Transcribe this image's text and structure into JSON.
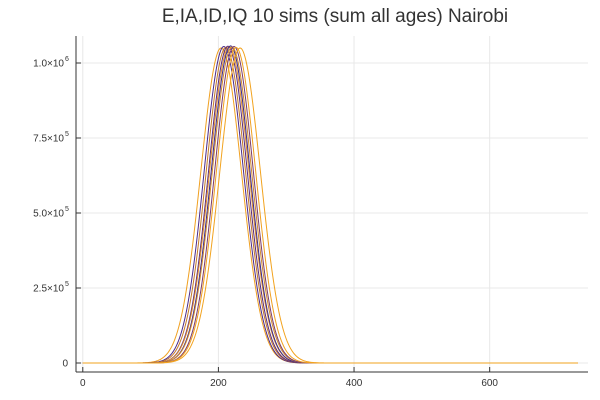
{
  "chart_data": {
    "type": "line",
    "title": "E,IA,ID,IQ 10 sims (sum all ages) Nairobi",
    "xlabel": "",
    "ylabel": "",
    "xlim": [
      -10,
      745
    ],
    "ylim": [
      -30000,
      1090000
    ],
    "grid": true,
    "legend": "none",
    "x_ticks": [
      {
        "value": 0,
        "label": "0"
      },
      {
        "value": 200,
        "label": "200"
      },
      {
        "value": 400,
        "label": "400"
      },
      {
        "value": 600,
        "label": "600"
      }
    ],
    "y_ticks": [
      {
        "value": 0,
        "mantissa": "0",
        "exponent": ""
      },
      {
        "value": 250000,
        "mantissa": "2.5×10",
        "exponent": "5"
      },
      {
        "value": 500000,
        "mantissa": "5.0×10",
        "exponent": "5"
      },
      {
        "value": 750000,
        "mantissa": "7.5×10",
        "exponent": "5"
      },
      {
        "value": 1000000,
        "mantissa": "1.0×10",
        "exponent": "6"
      }
    ],
    "x_end": 730,
    "series_shape": "bell",
    "series": [
      {
        "peak_day": 204,
        "peak_value": 1050000,
        "width": 30,
        "color": "#f0a020"
      },
      {
        "peak_day": 208,
        "peak_value": 1055000,
        "width": 29,
        "color": "#4a2a8a"
      },
      {
        "peak_day": 211,
        "peak_value": 1052000,
        "width": 29,
        "color": "#c47a2a"
      },
      {
        "peak_day": 214,
        "peak_value": 1056000,
        "width": 28.5,
        "color": "#5a2a7a"
      },
      {
        "peak_day": 216,
        "peak_value": 1054000,
        "width": 29,
        "color": "#e09030"
      },
      {
        "peak_day": 218,
        "peak_value": 1057000,
        "width": 28.5,
        "color": "#3a2a8a"
      },
      {
        "peak_day": 220,
        "peak_value": 1053000,
        "width": 29,
        "color": "#d08a30"
      },
      {
        "peak_day": 223,
        "peak_value": 1055000,
        "width": 28.5,
        "color": "#7a3a6a"
      },
      {
        "peak_day": 226,
        "peak_value": 1052000,
        "width": 29,
        "color": "#f0a020"
      },
      {
        "peak_day": 232,
        "peak_value": 1050000,
        "width": 30,
        "color": "#f2a31e"
      }
    ]
  }
}
